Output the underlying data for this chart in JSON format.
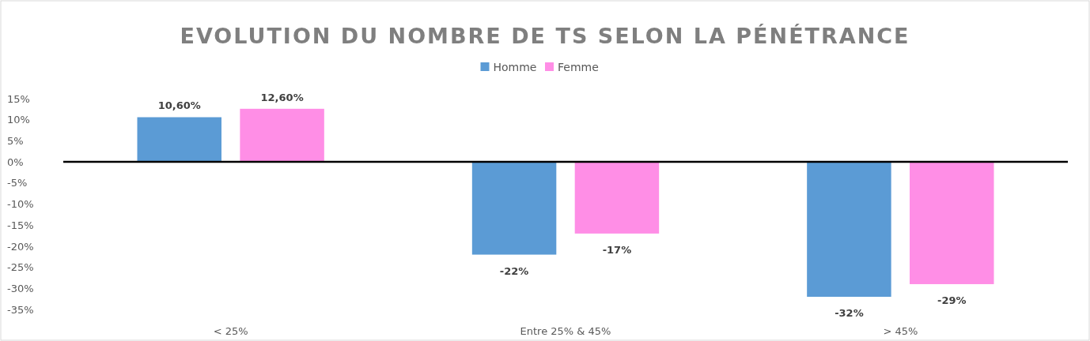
{
  "chart_data": {
    "type": "bar",
    "title": "EVOLUTION DU NOMBRE DE TS SELON LA PÉNÉTRANCE",
    "categories": [
      "< 25%",
      "Entre 25% & 45%",
      "> 45%"
    ],
    "series": [
      {
        "name": "Homme",
        "color": "#5b9bd5",
        "values": [
          10.6,
          -22,
          -32
        ],
        "value_labels": [
          "10,60%",
          "-22%",
          "-32%"
        ]
      },
      {
        "name": "Femme",
        "color": "#ff8ee6",
        "values": [
          12.6,
          -17,
          -29
        ],
        "value_labels": [
          "12,60%",
          "-17%",
          "-29%"
        ]
      }
    ],
    "ylim": [
      -35,
      15
    ],
    "yticks": [
      {
        "value": 15,
        "label": "15%"
      },
      {
        "value": 10,
        "label": "10%"
      },
      {
        "value": 5,
        "label": "5%"
      },
      {
        "value": 0,
        "label": "0%"
      },
      {
        "value": -5,
        "label": "-5%"
      },
      {
        "value": -10,
        "label": "-10%"
      },
      {
        "value": -15,
        "label": "-15%"
      },
      {
        "value": -20,
        "label": "-20%"
      },
      {
        "value": -25,
        "label": "-25%"
      },
      {
        "value": -30,
        "label": "-30%"
      },
      {
        "value": -35,
        "label": "-35%"
      }
    ],
    "legend": "top"
  }
}
